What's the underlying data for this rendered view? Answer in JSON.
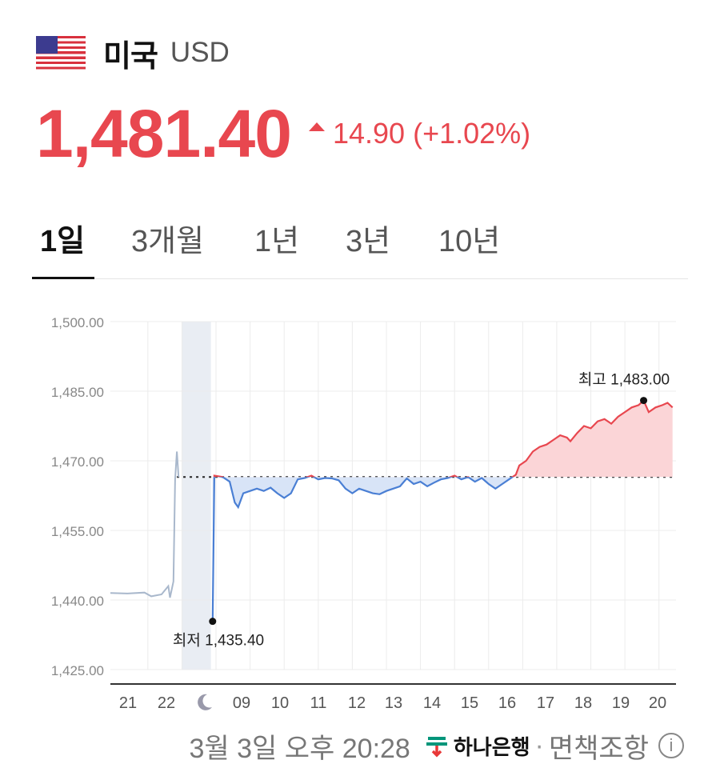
{
  "header": {
    "country": "미국",
    "currency_code": "USD"
  },
  "quote": {
    "price": "1,481.40",
    "direction": "up",
    "change": "14.90 (+1.02%)",
    "color_up": "#e8474f"
  },
  "tabs": [
    {
      "label": "1일",
      "active": true
    },
    {
      "label": "3개월",
      "active": false
    },
    {
      "label": "1년",
      "active": false
    },
    {
      "label": "3년",
      "active": false
    },
    {
      "label": "10년",
      "active": false
    }
  ],
  "chart_data": {
    "type": "line",
    "ylim": [
      1425,
      1500
    ],
    "yticks": [
      "1,500.00",
      "1,485.00",
      "1,470.00",
      "1,455.00",
      "1,440.00",
      "1,425.00"
    ],
    "xticks": [
      "21",
      "22",
      "09",
      "10",
      "11",
      "12",
      "13",
      "14",
      "15",
      "16",
      "17",
      "18",
      "19",
      "20"
    ],
    "night_icon": "moon-icon",
    "reference_line": 1466.5,
    "low_label": "최저 1,435.40",
    "high_label": "최고 1,483.00",
    "low_value": 1435.4,
    "high_value": 1483.0,
    "series": [
      {
        "segment": "previous-session",
        "color": "#a9b8cc",
        "points": [
          [
            20.5,
            1441.5
          ],
          [
            21.0,
            1441.4
          ],
          [
            21.5,
            1441.6
          ],
          [
            21.7,
            1440.8
          ],
          [
            22.0,
            1441.2
          ],
          [
            22.2,
            1443.0
          ],
          [
            22.25,
            1440.5
          ],
          [
            22.35,
            1444.0
          ],
          [
            22.4,
            1466.0
          ],
          [
            22.45,
            1472.0
          ],
          [
            22.5,
            1466.5
          ]
        ]
      },
      {
        "segment": "today",
        "color_above": "#e8474f",
        "color_below": "#4a7fd4",
        "points": [
          [
            23.5,
            1435.4
          ],
          [
            23.55,
            1466.8
          ],
          [
            23.8,
            1466.5
          ],
          [
            24.0,
            1465.5
          ],
          [
            24.15,
            1461.0
          ],
          [
            24.25,
            1460.0
          ],
          [
            24.4,
            1463.0
          ],
          [
            24.6,
            1463.5
          ],
          [
            24.8,
            1464.0
          ],
          [
            25.0,
            1463.5
          ],
          [
            25.2,
            1464.2
          ],
          [
            25.4,
            1463.0
          ],
          [
            25.6,
            1462.0
          ],
          [
            25.8,
            1463.0
          ],
          [
            26.0,
            1466.0
          ],
          [
            26.2,
            1466.3
          ],
          [
            26.4,
            1466.8
          ],
          [
            26.6,
            1466.0
          ],
          [
            26.8,
            1466.3
          ],
          [
            27.0,
            1466.2
          ],
          [
            27.2,
            1465.8
          ],
          [
            27.4,
            1464.0
          ],
          [
            27.6,
            1463.0
          ],
          [
            27.8,
            1464.0
          ],
          [
            28.0,
            1463.5
          ],
          [
            28.2,
            1463.0
          ],
          [
            28.4,
            1462.8
          ],
          [
            28.6,
            1463.5
          ],
          [
            28.8,
            1464.0
          ],
          [
            29.0,
            1464.5
          ],
          [
            29.2,
            1466.2
          ],
          [
            29.4,
            1465.0
          ],
          [
            29.6,
            1465.5
          ],
          [
            29.8,
            1464.5
          ],
          [
            30.0,
            1465.3
          ],
          [
            30.2,
            1466.0
          ],
          [
            30.4,
            1466.3
          ],
          [
            30.6,
            1466.8
          ],
          [
            30.8,
            1466.0
          ],
          [
            31.0,
            1466.5
          ],
          [
            31.2,
            1465.5
          ],
          [
            31.4,
            1466.3
          ],
          [
            31.6,
            1465.0
          ],
          [
            31.8,
            1464.0
          ],
          [
            32.0,
            1465.0
          ],
          [
            32.2,
            1466.0
          ],
          [
            32.4,
            1467.0
          ],
          [
            32.5,
            1469.0
          ],
          [
            32.7,
            1470.0
          ],
          [
            32.9,
            1472.0
          ],
          [
            33.1,
            1473.0
          ],
          [
            33.3,
            1473.5
          ],
          [
            33.5,
            1474.5
          ],
          [
            33.7,
            1475.5
          ],
          [
            33.9,
            1475.0
          ],
          [
            34.0,
            1474.2
          ],
          [
            34.2,
            1476.0
          ],
          [
            34.4,
            1477.5
          ],
          [
            34.6,
            1477.0
          ],
          [
            34.8,
            1478.5
          ],
          [
            35.0,
            1479.0
          ],
          [
            35.2,
            1478.0
          ],
          [
            35.4,
            1479.5
          ],
          [
            35.6,
            1480.5
          ],
          [
            35.8,
            1481.5
          ],
          [
            36.0,
            1482.0
          ],
          [
            36.15,
            1483.0
          ],
          [
            36.3,
            1480.5
          ],
          [
            36.5,
            1481.5
          ],
          [
            36.7,
            1482.0
          ],
          [
            36.85,
            1482.5
          ],
          [
            37.0,
            1481.5
          ]
        ]
      }
    ]
  },
  "footer": {
    "timestamp": "3월 3일 오후 20:28",
    "bank_name": "하나은행",
    "separator": "·",
    "disclaimer": "면책조항",
    "info_icon": "ⓘ"
  }
}
